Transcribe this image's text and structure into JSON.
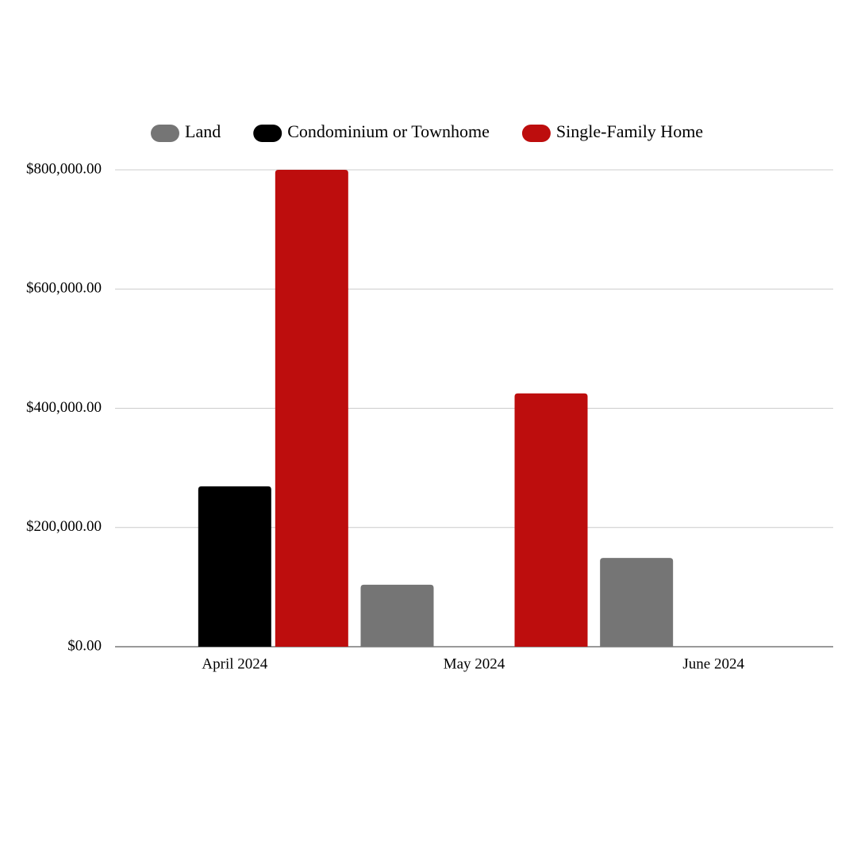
{
  "chart_data": {
    "type": "bar",
    "categories": [
      "April 2024",
      "May 2024",
      "June 2024"
    ],
    "series": [
      {
        "name": "Land",
        "color": "#757575",
        "values": [
          null,
          104000,
          149000
        ]
      },
      {
        "name": "Condominium or Townhome",
        "color": "#000000",
        "values": [
          269000,
          null,
          null
        ]
      },
      {
        "name": "Single-Family Home",
        "color": "#bd0d0d",
        "values": [
          800000,
          425000,
          null
        ]
      }
    ],
    "ylim": [
      0,
      800000
    ],
    "yticks": [
      {
        "value": 0,
        "label": "$0.00"
      },
      {
        "value": 200000,
        "label": "$200,000.00"
      },
      {
        "value": 400000,
        "label": "$400,000.00"
      },
      {
        "value": 600000,
        "label": "$600,000.00"
      },
      {
        "value": 800000,
        "label": "$800,000.00"
      }
    ],
    "grid": true,
    "legend": "top"
  }
}
